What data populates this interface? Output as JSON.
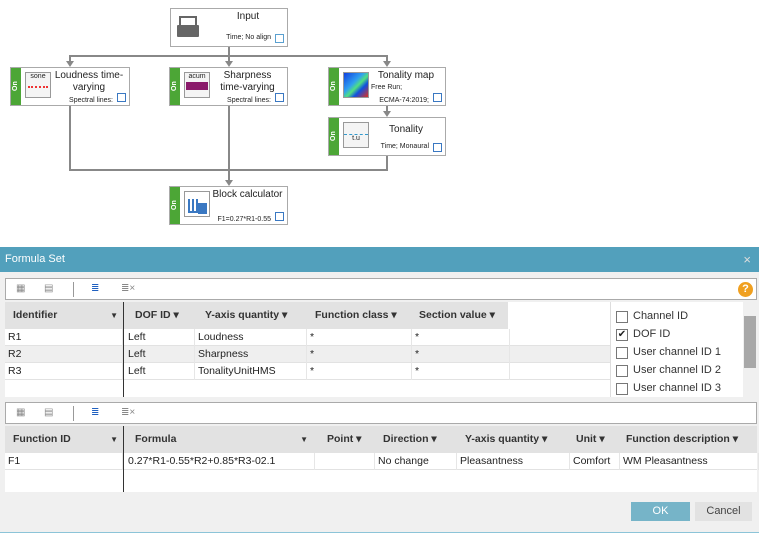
{
  "workflow": {
    "on_label": "On",
    "input": {
      "title": "Input",
      "subtitle": "Time; No align"
    },
    "loudness": {
      "icon_label": "sone",
      "title": "Loudness time-varying",
      "subtitle": "Spectral lines:"
    },
    "sharpness": {
      "icon_label": "acum",
      "title": "Sharpness time-varying",
      "subtitle": "Spectral lines:"
    },
    "tonality_map": {
      "title": "Tonality map",
      "subtitle1": "Free Run;",
      "subtitle2": "ECMA-74:2019;"
    },
    "tonality": {
      "icon_label": "t.u",
      "title": "Tonality",
      "subtitle": "Time; Monaural"
    },
    "block_calculator": {
      "title": "Block calculator",
      "subtitle": "F1=0.27*R1-0.55"
    }
  },
  "dialog": {
    "title": "Formula Set",
    "close": "×",
    "help": "?",
    "inputs_table": {
      "columns": [
        "Identifier",
        "DOF ID",
        "Y-axis quantity",
        "Function class",
        "Section value"
      ],
      "rows": [
        [
          "R1",
          "Left",
          "Loudness",
          "*",
          "*"
        ],
        [
          "R2",
          "Left",
          "Sharpness",
          "*",
          "*"
        ],
        [
          "R3",
          "Left",
          "TonalityUnitHMS",
          "*",
          "*"
        ]
      ]
    },
    "column_options": [
      {
        "label": "Channel ID",
        "checked": false
      },
      {
        "label": "DOF ID",
        "checked": true
      },
      {
        "label": "User channel ID 1",
        "checked": false
      },
      {
        "label": "User channel ID 2",
        "checked": false
      },
      {
        "label": "User channel ID 3",
        "checked": false
      }
    ],
    "functions_table": {
      "columns": [
        "Function ID",
        "Formula",
        "Point",
        "Direction",
        "Y-axis quantity",
        "Unit",
        "Function description"
      ],
      "rows": [
        [
          "F1",
          "0.27*R1-0.55*R2+0.85*R3-02.1",
          "",
          "No change",
          "Pleasantness",
          "Comfort",
          "WM Pleasantness"
        ]
      ]
    },
    "ok": "OK",
    "cancel": "Cancel"
  },
  "colors": {
    "titlebar": "#52a0bc",
    "on_strip": "#4ca636",
    "ok_button": "#76b4c8"
  }
}
